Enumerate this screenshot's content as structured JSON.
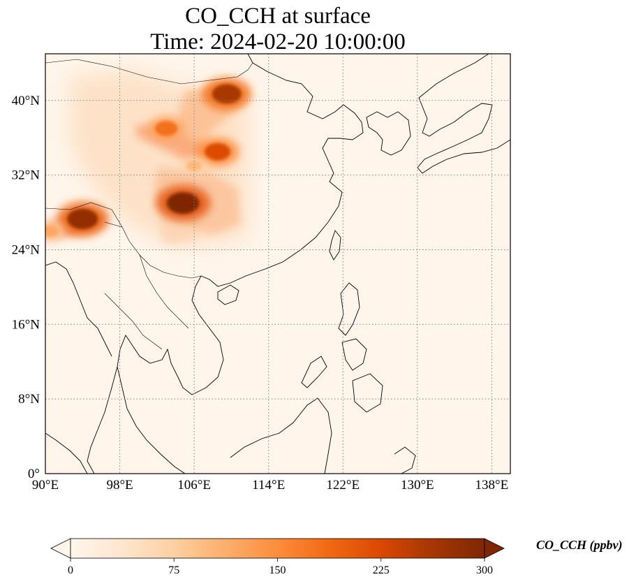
{
  "title": {
    "line1": "CO_CCH at surface",
    "line2": "Time: 2024-02-20 10:00:00"
  },
  "map": {
    "lon_range": [
      90,
      140
    ],
    "lat_range": [
      0,
      45
    ],
    "x_ticks": [
      {
        "value": 90,
        "label": "90°E"
      },
      {
        "value": 98,
        "label": "98°E"
      },
      {
        "value": 106,
        "label": "106°E"
      },
      {
        "value": 114,
        "label": "114°E"
      },
      {
        "value": 122,
        "label": "122°E"
      },
      {
        "value": 130,
        "label": "130°E"
      },
      {
        "value": 138,
        "label": "138°E"
      }
    ],
    "y_ticks": [
      {
        "value": 0,
        "label": "0°"
      },
      {
        "value": 8,
        "label": "8°N"
      },
      {
        "value": 16,
        "label": "16°N"
      },
      {
        "value": 24,
        "label": "24°N"
      },
      {
        "value": 32,
        "label": "32°N"
      },
      {
        "value": 40,
        "label": "40°N"
      }
    ],
    "gridlines": true,
    "colors": {
      "background": "#fff5eb",
      "coast": "#000000",
      "grid": "#808080"
    },
    "hotspots": [
      {
        "name": "sichuan-basin",
        "lon": 104.8,
        "lat": 29.0,
        "value": 300
      },
      {
        "name": "northeast-india",
        "lon": 94.0,
        "lat": 27.3,
        "value": 280
      },
      {
        "name": "inner-mongolia",
        "lon": 109.5,
        "lat": 40.7,
        "value": 260
      },
      {
        "name": "shaanxi",
        "lon": 108.5,
        "lat": 34.5,
        "value": 220
      },
      {
        "name": "ningxia-gansu",
        "lon": 103.0,
        "lat": 37.0,
        "value": 180
      },
      {
        "name": "bangladesh",
        "lon": 90.5,
        "lat": 26.0,
        "value": 120
      },
      {
        "name": "central-plume",
        "lon": 106.0,
        "lat": 33.0,
        "value": 100
      }
    ]
  },
  "colorbar": {
    "label": "CO_CCH (ppbv)",
    "min": 0,
    "max": 300,
    "ticks": [
      {
        "value": 0,
        "label": "0"
      },
      {
        "value": 75,
        "label": "75"
      },
      {
        "value": 150,
        "label": "150"
      },
      {
        "value": 225,
        "label": "225"
      },
      {
        "value": 300,
        "label": "300"
      }
    ],
    "colormap": [
      "#fff5eb",
      "#fee6ce",
      "#fdd0a2",
      "#fdae6b",
      "#fd8d3c",
      "#f16913",
      "#d94801",
      "#a63603",
      "#7f2704"
    ],
    "extend": "both"
  }
}
